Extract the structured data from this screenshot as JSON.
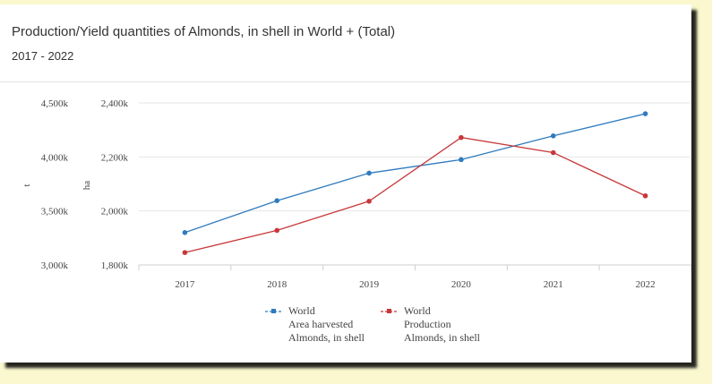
{
  "header": {
    "title": "Production/Yield quantities of Almonds, in shell in World + (Total)",
    "subtitle": "2017 - 2022"
  },
  "chart_data": {
    "type": "line",
    "title": "Production/Yield quantities of Almonds, in shell in World + (Total)",
    "subtitle": "2017 - 2022",
    "categories": [
      "2017",
      "2018",
      "2019",
      "2020",
      "2021",
      "2022"
    ],
    "left_axis": {
      "unit": "t",
      "range": [
        3000,
        4500
      ],
      "ticks": [
        "4,500k",
        "4,000k",
        "3,500k",
        "3,000k"
      ],
      "tick_values": [
        4500,
        4000,
        3500,
        3000
      ]
    },
    "right_axis": {
      "unit": "ha",
      "range": [
        1800,
        2400
      ],
      "ticks": [
        "2,400k",
        "2,200k",
        "2,000k",
        "1,800k"
      ],
      "tick_values": [
        2400,
        2200,
        2000,
        1800
      ]
    },
    "series": [
      {
        "name": "World Area harvested Almonds, in shell",
        "legend_lines": [
          "World",
          "Area harvested",
          "Almonds, in shell"
        ],
        "axis": "right",
        "color": "#2f7bbf",
        "values": [
          1920,
          2038,
          2140,
          2190,
          2278,
          2360
        ]
      },
      {
        "name": "World Production Almonds, in shell",
        "legend_lines": [
          "World",
          "Production",
          "Almonds, in shell"
        ],
        "axis": "left",
        "color": "#c8383a",
        "values": [
          3115,
          3320,
          3590,
          4180,
          4040,
          3640
        ]
      }
    ],
    "grid": true,
    "legend_position": "bottom"
  }
}
